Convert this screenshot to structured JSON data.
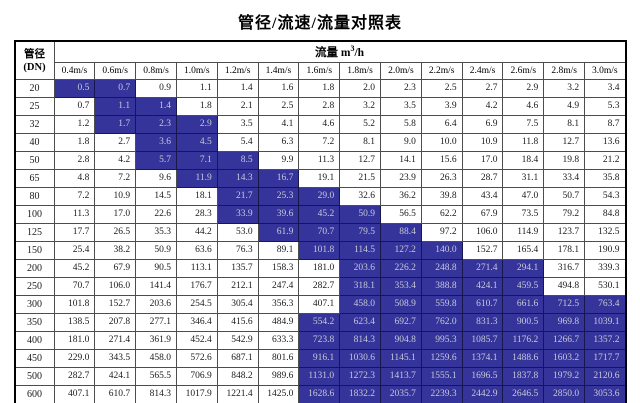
{
  "title": "管径/流速/流量对照表",
  "table": {
    "corner_line1": "管径",
    "corner_line2": "(DN)",
    "flow_header_prefix": "流量 m",
    "flow_header_sup": "3",
    "flow_header_suffix": "/h"
  },
  "colors": {
    "highlight_bg": "#34349A",
    "highlight_text": "#C8C8DA",
    "border": "#000000",
    "cell_text": "#1A1A1A"
  },
  "chart_data": {
    "type": "table",
    "title": "管径/流速/流量对照表",
    "row_header": "管径 (DN)",
    "column_group_header": "流量 m³/h",
    "columns": [
      "0.4m/s",
      "0.6m/s",
      "0.8m/s",
      "1.0m/s",
      "1.2m/s",
      "1.4m/s",
      "1.6m/s",
      "1.8m/s",
      "2.0m/s",
      "2.2m/s",
      "2.4m/s",
      "2.6m/s",
      "2.8m/s",
      "3.0m/s"
    ],
    "rows": [
      20,
      25,
      32,
      40,
      50,
      65,
      80,
      100,
      125,
      150,
      200,
      250,
      300,
      350,
      400,
      450,
      500,
      600
    ],
    "values": [
      [
        0.5,
        0.7,
        0.9,
        1.1,
        1.4,
        1.6,
        1.8,
        2.0,
        2.3,
        2.5,
        2.7,
        2.9,
        3.2,
        3.4
      ],
      [
        0.7,
        1.1,
        1.4,
        1.8,
        2.1,
        2.5,
        2.8,
        3.2,
        3.5,
        3.9,
        4.2,
        4.6,
        4.9,
        5.3
      ],
      [
        1.2,
        1.7,
        2.3,
        2.9,
        3.5,
        4.1,
        4.6,
        5.2,
        5.8,
        6.4,
        6.9,
        7.5,
        8.1,
        8.7
      ],
      [
        1.8,
        2.7,
        3.6,
        4.5,
        5.4,
        6.3,
        7.2,
        8.1,
        9.0,
        10.0,
        10.9,
        11.8,
        12.7,
        13.6
      ],
      [
        2.8,
        4.2,
        5.7,
        7.1,
        8.5,
        9.9,
        11.3,
        12.7,
        14.1,
        15.6,
        17.0,
        18.4,
        19.8,
        21.2
      ],
      [
        4.8,
        7.2,
        9.6,
        11.9,
        14.3,
        16.7,
        19.1,
        21.5,
        23.9,
        26.3,
        28.7,
        31.1,
        33.4,
        35.8
      ],
      [
        7.2,
        10.9,
        14.5,
        18.1,
        21.7,
        25.3,
        29.0,
        32.6,
        36.2,
        39.8,
        43.4,
        47.0,
        50.7,
        54.3
      ],
      [
        11.3,
        17.0,
        22.6,
        28.3,
        33.9,
        39.6,
        45.2,
        50.9,
        56.5,
        62.2,
        67.9,
        73.5,
        79.2,
        84.8
      ],
      [
        17.7,
        26.5,
        35.3,
        44.2,
        53.0,
        61.9,
        70.7,
        79.5,
        88.4,
        97.2,
        106.0,
        114.9,
        123.7,
        132.5
      ],
      [
        25.4,
        38.2,
        50.9,
        63.6,
        76.3,
        89.1,
        101.8,
        114.5,
        127.2,
        140.0,
        152.7,
        165.4,
        178.1,
        190.9
      ],
      [
        45.2,
        67.9,
        90.5,
        113.1,
        135.7,
        158.3,
        181.0,
        203.6,
        226.2,
        248.8,
        271.4,
        294.1,
        316.7,
        339.3
      ],
      [
        70.7,
        106.0,
        141.4,
        176.7,
        212.1,
        247.4,
        282.7,
        318.1,
        353.4,
        388.8,
        424.1,
        459.5,
        494.8,
        530.1
      ],
      [
        101.8,
        152.7,
        203.6,
        254.5,
        305.4,
        356.3,
        407.1,
        458.0,
        508.9,
        559.8,
        610.7,
        661.6,
        712.5,
        763.4
      ],
      [
        138.5,
        207.8,
        277.1,
        346.4,
        415.6,
        484.9,
        554.2,
        623.4,
        692.7,
        762.0,
        831.3,
        900.5,
        969.8,
        1039.1
      ],
      [
        181.0,
        271.4,
        361.9,
        452.4,
        542.9,
        633.3,
        723.8,
        814.3,
        904.8,
        995.3,
        1085.7,
        1176.2,
        1266.7,
        1357.2
      ],
      [
        229.0,
        343.5,
        458.0,
        572.6,
        687.1,
        801.6,
        916.1,
        1030.6,
        1145.1,
        1259.6,
        1374.1,
        1488.6,
        1603.2,
        1717.7
      ],
      [
        282.7,
        424.1,
        565.5,
        706.9,
        848.2,
        989.6,
        1131.0,
        1272.3,
        1413.7,
        1555.1,
        1696.5,
        1837.8,
        1979.2,
        2120.6
      ],
      [
        407.1,
        610.7,
        814.3,
        1017.9,
        1221.4,
        1425.0,
        1628.6,
        1832.2,
        2035.7,
        2239.3,
        2442.9,
        2646.5,
        2850.0,
        3053.6
      ]
    ],
    "highlighted_columns_per_row": [
      [
        0,
        1
      ],
      [
        1,
        2
      ],
      [
        1,
        2,
        3
      ],
      [
        2,
        3
      ],
      [
        2,
        3,
        4
      ],
      [
        3,
        4,
        5
      ],
      [
        4,
        5,
        6
      ],
      [
        4,
        5,
        6,
        7
      ],
      [
        5,
        6,
        7,
        8
      ],
      [
        6,
        7,
        8,
        9
      ],
      [
        7,
        8,
        9,
        10,
        11
      ],
      [
        7,
        8,
        9,
        10,
        11
      ],
      [
        7,
        8,
        9,
        10,
        11,
        12,
        13
      ],
      [
        6,
        7,
        8,
        9,
        10,
        11,
        12,
        13
      ],
      [
        6,
        7,
        8,
        9,
        10,
        11,
        12,
        13
      ],
      [
        6,
        7,
        8,
        9,
        10,
        11,
        12,
        13
      ],
      [
        6,
        7,
        8,
        9,
        10,
        11,
        12,
        13
      ],
      [
        6,
        7,
        8,
        9,
        10,
        11,
        12,
        13
      ]
    ]
  }
}
